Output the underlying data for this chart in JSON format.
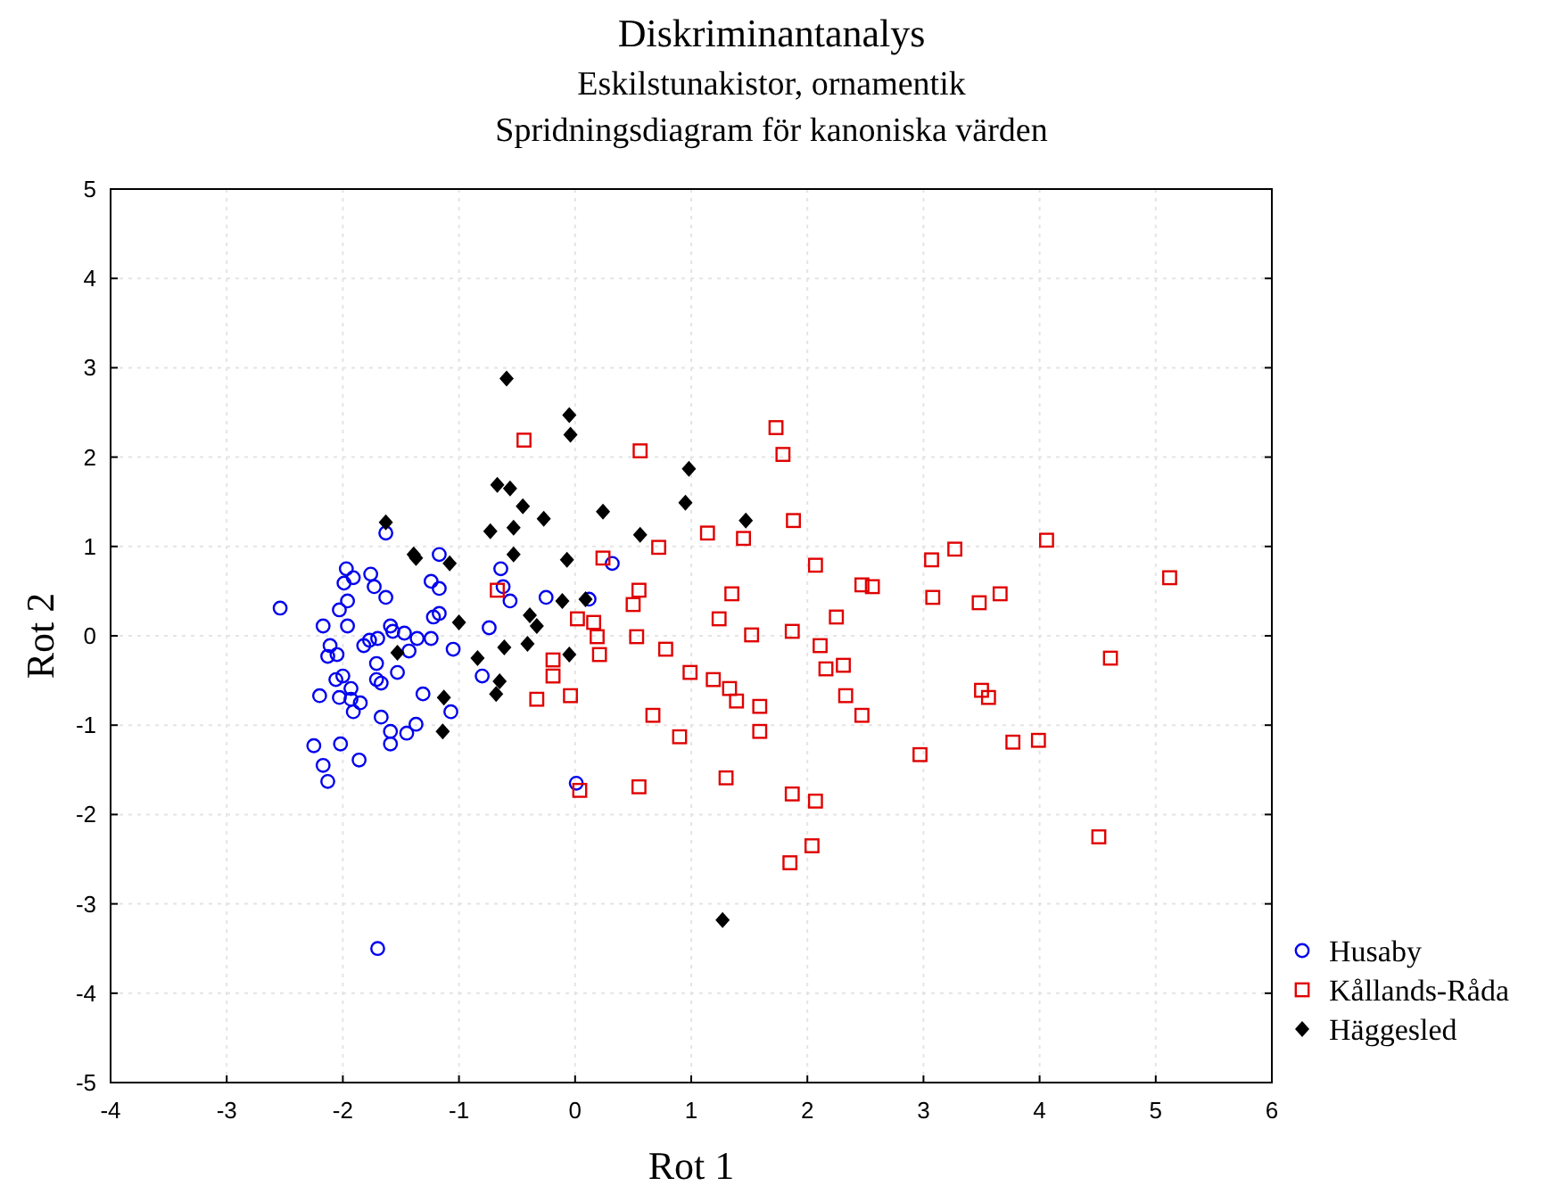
{
  "chart_data": {
    "type": "scatter",
    "title": "Diskriminantanalys",
    "subtitle": "Eskilstunakistor, ornamentik\nSpridningsdiagram för kanoniska värden",
    "xlabel": "Rot 1",
    "ylabel": "Rot 2",
    "xlim": [
      -4,
      6
    ],
    "xticks": [
      -4,
      -3,
      -2,
      -1,
      0,
      1,
      2,
      3,
      4,
      5,
      6
    ],
    "ylim": [
      -5,
      5
    ],
    "yticks": [
      -5,
      -4,
      -3,
      -2,
      -1,
      0,
      1,
      2,
      3,
      4,
      5
    ],
    "grid": true,
    "legend": "bottom right",
    "series": [
      {
        "name": "Husaby",
        "color": "#0000ee",
        "marker": "circle",
        "x": [
          -1.63,
          -2.54,
          -1.97,
          -1.91,
          -1.99,
          -1.76,
          -1.73,
          -1.63,
          -1.17,
          -1.24,
          -1.17,
          -1.96,
          -2.03,
          -2.17,
          -1.96,
          -1.59,
          -1.47,
          -1.36,
          -1.24,
          -1.57,
          -1.7,
          -1.77,
          -1.82,
          -1.43,
          -1.05,
          -2.11,
          -2.13,
          -2.05,
          -1.71,
          -1.53,
          -2,
          -2.06,
          -1.71,
          -1.67,
          -2.2,
          -2.03,
          -1.93,
          -1.93,
          -1.85,
          -1.91,
          -1.31,
          -1.07,
          -1.67,
          -0.8,
          -0.74,
          -1.59,
          -1.37,
          -1.45,
          -1.59,
          -2.02,
          -2.25,
          -1.86,
          -2.17,
          -2.13,
          -1.7,
          -0.64,
          0.32,
          -0.62,
          -0.56,
          -0.25,
          0.12,
          0.01,
          -1.17,
          -1.22
        ],
        "values": [
          1.15,
          0.31,
          0.75,
          0.65,
          0.59,
          0.69,
          0.55,
          0.43,
          0.91,
          0.61,
          0.53,
          0.39,
          0.29,
          0.11,
          0.11,
          0.11,
          0.03,
          -0.03,
          -0.03,
          0.05,
          -0.03,
          -0.05,
          -0.11,
          -0.17,
          -0.15,
          -0.11,
          -0.23,
          -0.21,
          -0.31,
          -0.41,
          -0.45,
          -0.49,
          -0.49,
          -0.53,
          -0.67,
          -0.69,
          -0.59,
          -0.71,
          -0.75,
          -0.85,
          -0.65,
          -0.85,
          -0.91,
          -0.45,
          0.09,
          -1.07,
          -0.99,
          -1.09,
          -1.21,
          -1.21,
          -1.23,
          -1.39,
          -1.45,
          -1.63,
          -3.5,
          0.75,
          0.81,
          0.55,
          0.39,
          0.43,
          0.41,
          -1.65,
          0.25,
          0.21
        ]
      },
      {
        "name": "Kållands-Råda",
        "color": "#e00000",
        "marker": "square",
        "x": [
          -0.44,
          0.56,
          1.14,
          0.72,
          0.24,
          -0.67,
          0.55,
          0.5,
          0.02,
          0.16,
          0.19,
          0.53,
          1.24,
          0.78,
          0.21,
          -0.19,
          -0.19,
          0.99,
          1.19,
          1.33,
          -0.33,
          -0.04,
          0.67,
          0.9,
          0.04,
          0.55,
          1.3,
          1.35,
          1.73,
          1.79,
          1.88,
          1.45,
          2.07,
          1.52,
          1.87,
          2.47,
          2.56,
          2.25,
          2.11,
          2.16,
          2.31,
          2.33,
          2.47,
          1.39,
          1.59,
          1.59,
          1.87,
          2.07,
          2.04,
          1.85,
          3.07,
          3.27,
          3.08,
          2.97,
          4.06,
          5.12,
          3.66,
          3.48,
          4.61,
          3.5,
          3.56,
          3.77,
          3.99,
          4.51
        ],
        "values": [
          2.19,
          2.07,
          1.15,
          0.99,
          0.87,
          0.51,
          0.51,
          0.35,
          0.19,
          0.15,
          -0.01,
          -0.01,
          0.19,
          -0.15,
          -0.21,
          -0.27,
          -0.45,
          -0.41,
          -0.49,
          -0.59,
          -0.71,
          -0.67,
          -0.89,
          -1.13,
          -1.73,
          -1.69,
          -1.59,
          0.47,
          2.33,
          2.03,
          1.29,
          1.09,
          0.79,
          0.01,
          0.05,
          0.57,
          0.55,
          0.21,
          -0.11,
          -0.37,
          -0.33,
          -0.67,
          -0.89,
          -0.73,
          -0.79,
          -1.07,
          -1.77,
          -1.85,
          -2.35,
          -2.54,
          0.85,
          0.97,
          0.43,
          -1.33,
          1.07,
          0.65,
          0.47,
          0.37,
          -0.25,
          -0.61,
          -0.69,
          -1.19,
          -1.17,
          -2.25
        ]
      },
      {
        "name": "Häggesled",
        "color": "#000000",
        "marker": "diamond",
        "x": [
          -0.59,
          -0.05,
          -0.04,
          0.98,
          0.95,
          -0.67,
          -0.56,
          -0.45,
          -0.27,
          0.24,
          -0.73,
          -0.53,
          0.56,
          -0.53,
          -0.07,
          -0.11,
          0.09,
          -0.39,
          -0.33,
          -0.61,
          -0.41,
          -0.05,
          -0.84,
          -0.65,
          -0.68,
          -1.63,
          -1.39,
          -1.37,
          -1.08,
          -1,
          -1.53,
          -1.13,
          -1.14,
          1.47,
          1.27
        ],
        "values": [
          2.88,
          2.47,
          2.25,
          1.87,
          1.49,
          1.69,
          1.65,
          1.45,
          1.31,
          1.39,
          1.17,
          1.21,
          1.13,
          0.91,
          0.85,
          0.39,
          0.41,
          0.23,
          0.11,
          -0.13,
          -0.09,
          -0.21,
          -0.25,
          -0.51,
          -0.65,
          1.27,
          0.91,
          0.87,
          0.81,
          0.15,
          -0.19,
          -0.69,
          -1.07,
          1.29,
          -3.18
        ]
      }
    ]
  }
}
